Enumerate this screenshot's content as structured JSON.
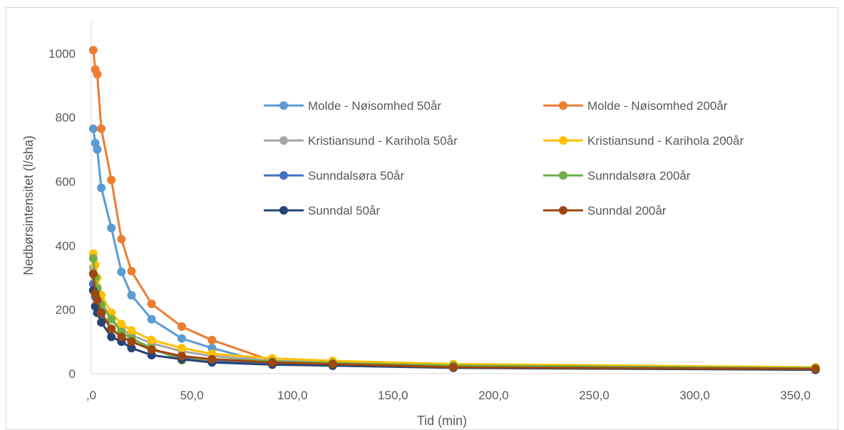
{
  "chart_data": {
    "type": "line",
    "title": "",
    "xlabel": "Tid (min)",
    "ylabel": "Nedbørsintensitet (l/sha)",
    "xlim": [
      0,
      360
    ],
    "ylim": [
      0,
      1100
    ],
    "xticks": [
      0,
      50,
      100,
      150,
      200,
      250,
      300,
      350
    ],
    "xtick_labels": [
      ",0",
      "50,0",
      "100,0",
      "150,0",
      "200,0",
      "250,0",
      "300,0",
      "350,0"
    ],
    "yticks": [
      0,
      200,
      400,
      600,
      800,
      1000
    ],
    "ytick_labels": [
      "0",
      "200",
      "400",
      "600",
      "800",
      "1000"
    ],
    "grid": false,
    "legend": "inside, upper-right, two columns",
    "x": [
      1,
      2,
      3,
      5,
      10,
      15,
      20,
      30,
      45,
      60,
      90,
      120,
      180,
      360
    ],
    "series": [
      {
        "name": "Molde - Nøisomhed 50år",
        "color": "#5b9bd5",
        "values": [
          765,
          720,
          700,
          580,
          455,
          318,
          245,
          170,
          110,
          80,
          30,
          25,
          20,
          13
        ]
      },
      {
        "name": "Molde - Nøisomhed 200år",
        "color": "#ed7d31",
        "values": [
          1010,
          950,
          935,
          765,
          605,
          420,
          320,
          218,
          147,
          105,
          40,
          33,
          25,
          17
        ]
      },
      {
        "name": "Kristiansund - Karihola 50år",
        "color": "#a5a5a5",
        "values": [
          330,
          290,
          270,
          225,
          170,
          140,
          120,
          95,
          70,
          55,
          40,
          35,
          25,
          16
        ]
      },
      {
        "name": "Kristiansund - Karihola 200år",
        "color": "#ffc000",
        "values": [
          375,
          340,
          300,
          245,
          190,
          155,
          135,
          105,
          80,
          62,
          48,
          40,
          30,
          20
        ]
      },
      {
        "name": "Sunndalsøra 50år",
        "color": "#4472c4",
        "values": [
          280,
          240,
          220,
          185,
          140,
          115,
          100,
          75,
          50,
          40,
          30,
          25,
          20,
          13
        ]
      },
      {
        "name": "Sunndalsøra 200år",
        "color": "#70ad47",
        "values": [
          360,
          300,
          265,
          215,
          170,
          130,
          110,
          80,
          42,
          45,
          38,
          33,
          25,
          17
        ]
      },
      {
        "name": "Sunndal 50år",
        "color": "#264478",
        "values": [
          260,
          210,
          190,
          160,
          115,
          100,
          80,
          58,
          45,
          35,
          28,
          25,
          18,
          12
        ]
      },
      {
        "name": "Sunndal 200år",
        "color": "#9e480e",
        "values": [
          312,
          250,
          230,
          190,
          140,
          115,
          100,
          75,
          55,
          45,
          35,
          30,
          20,
          15
        ]
      }
    ]
  }
}
